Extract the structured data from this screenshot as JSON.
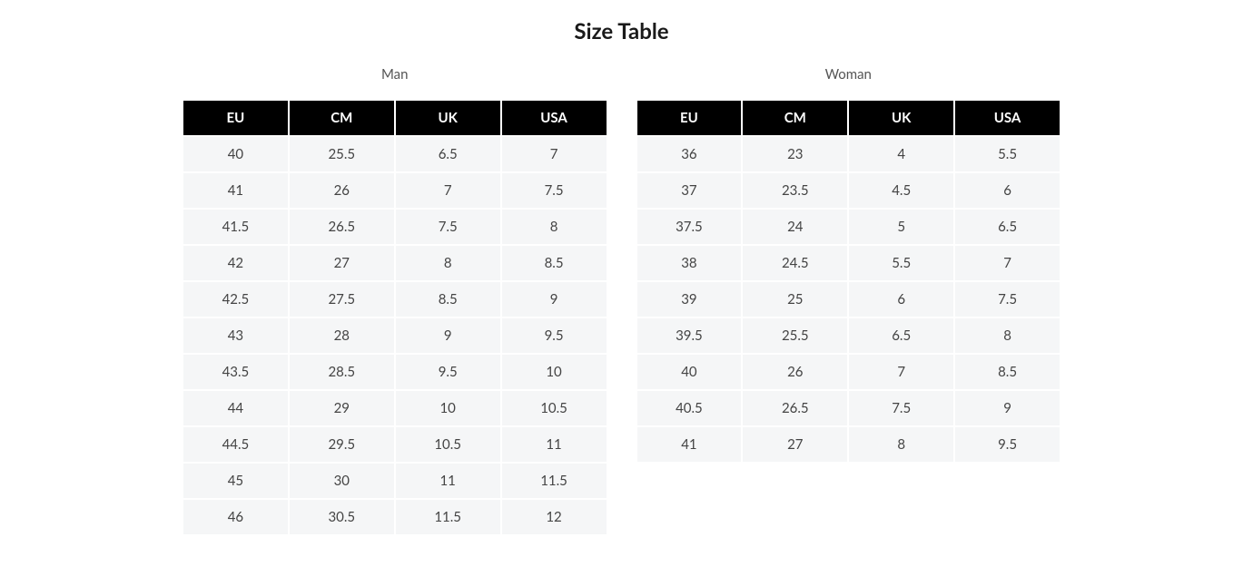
{
  "title": "Size Table",
  "background_color": "#ffffff",
  "header_bg_color": "#000000",
  "header_text_color": "#ffffff",
  "cell_bg_color": "#f5f6f7",
  "cell_text_color": "#444444",
  "title_color": "#1a1a1a",
  "label_color": "#555555",
  "title_fontsize": 24,
  "label_fontsize": 15,
  "header_fontsize": 15,
  "cell_fontsize": 15,
  "tables": [
    {
      "label": "Man",
      "columns": [
        "EU",
        "CM",
        "UK",
        "USA"
      ],
      "rows": [
        [
          "40",
          "25.5",
          "6.5",
          "7"
        ],
        [
          "41",
          "26",
          "7",
          "7.5"
        ],
        [
          "41.5",
          "26.5",
          "7.5",
          "8"
        ],
        [
          "42",
          "27",
          "8",
          "8.5"
        ],
        [
          "42.5",
          "27.5",
          "8.5",
          "9"
        ],
        [
          "43",
          "28",
          "9",
          "9.5"
        ],
        [
          "43.5",
          "28.5",
          "9.5",
          "10"
        ],
        [
          "44",
          "29",
          "10",
          "10.5"
        ],
        [
          "44.5",
          "29.5",
          "10.5",
          "11"
        ],
        [
          "45",
          "30",
          "11",
          "11.5"
        ],
        [
          "46",
          "30.5",
          "11.5",
          "12"
        ]
      ]
    },
    {
      "label": "Woman",
      "columns": [
        "EU",
        "CM",
        "UK",
        "USA"
      ],
      "rows": [
        [
          "36",
          "23",
          "4",
          "5.5"
        ],
        [
          "37",
          "23.5",
          "4.5",
          "6"
        ],
        [
          "37.5",
          "24",
          "5",
          "6.5"
        ],
        [
          "38",
          "24.5",
          "5.5",
          "7"
        ],
        [
          "39",
          "25",
          "6",
          "7.5"
        ],
        [
          "39.5",
          "25.5",
          "6.5",
          "8"
        ],
        [
          "40",
          "26",
          "7",
          "8.5"
        ],
        [
          "40.5",
          "26.5",
          "7.5",
          "9"
        ],
        [
          "41",
          "27",
          "8",
          "9.5"
        ]
      ]
    }
  ]
}
